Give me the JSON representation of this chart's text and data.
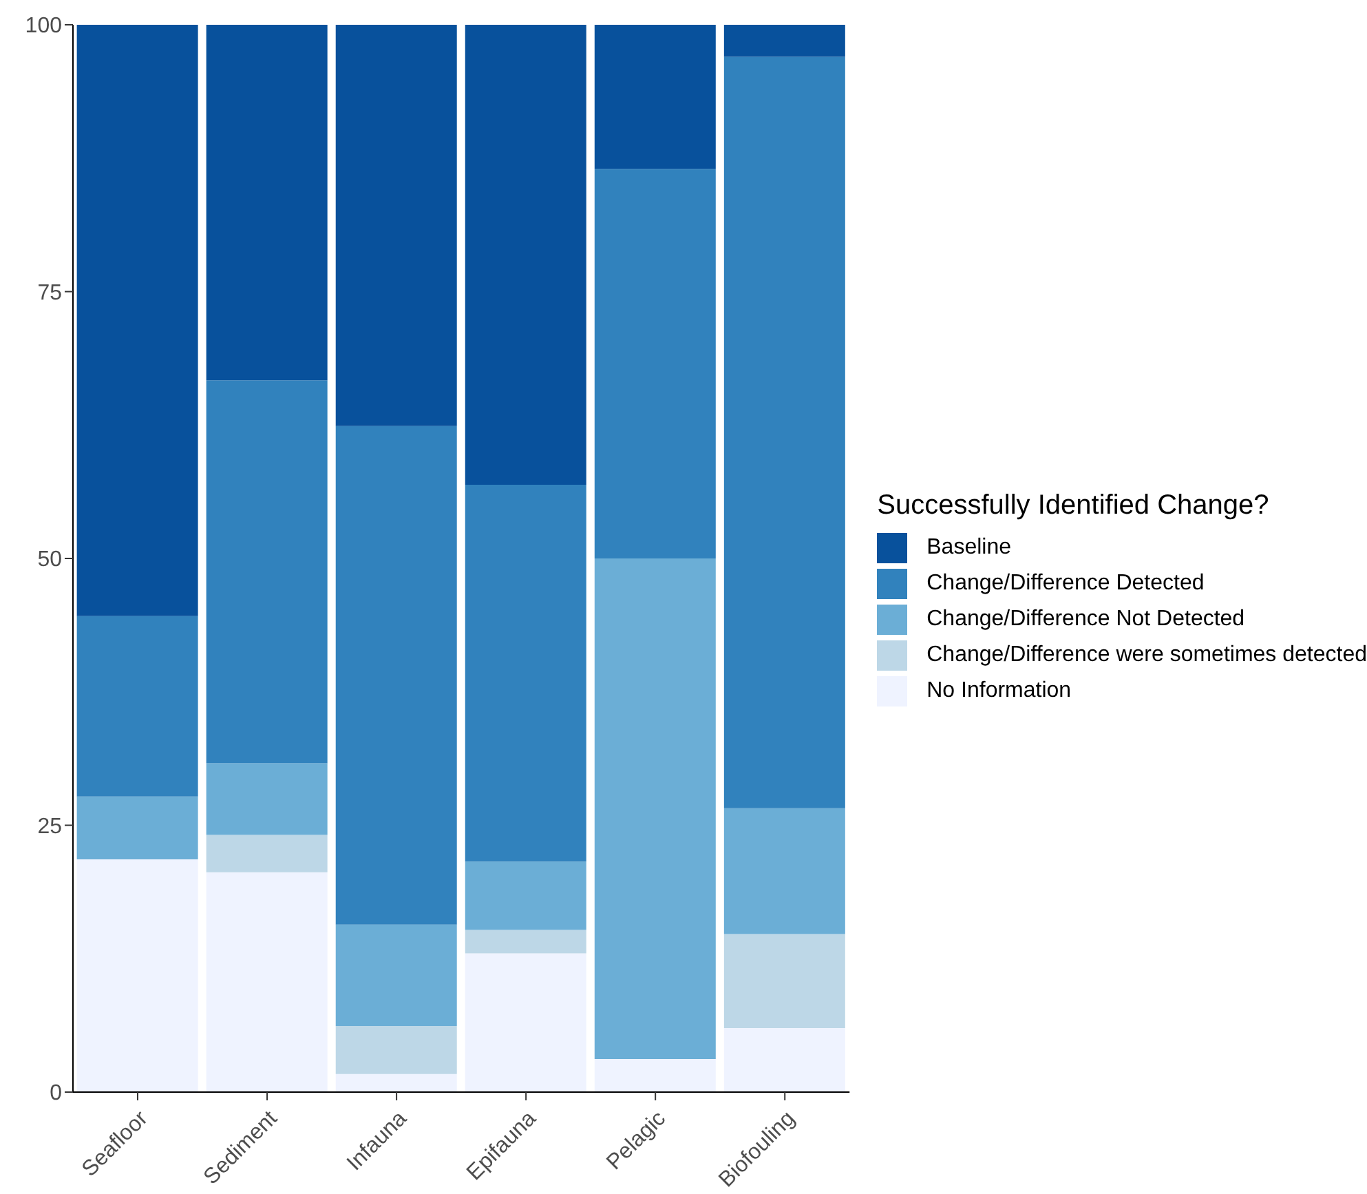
{
  "chart_data": {
    "type": "bar",
    "stacked": true,
    "legend_title": "Successfully Identified Change?",
    "categories": [
      "Seafloor",
      "Sediment",
      "Infauna",
      "Epifauna",
      "Pelagic",
      "Biofouling"
    ],
    "series": [
      {
        "name": "No Information",
        "color": "#eff3ff",
        "values": [
          21.8,
          20.6,
          1.7,
          13.0,
          3.1,
          6.0
        ]
      },
      {
        "name": "Change/Difference were sometimes detected",
        "color": "#bdd7e7",
        "values": [
          0,
          3.5,
          4.5,
          2.2,
          0,
          8.8
        ]
      },
      {
        "name": "Change/Difference Not Detected",
        "color": "#6baed6",
        "values": [
          5.9,
          6.7,
          9.5,
          6.4,
          46.9,
          11.8
        ]
      },
      {
        "name": "Change/Difference Detected",
        "color": "#3182bd",
        "values": [
          16.9,
          35.9,
          46.7,
          35.3,
          36.5,
          70.4
        ]
      },
      {
        "name": "Baseline",
        "color": "#08519c",
        "values": [
          55.4,
          33.3,
          37.6,
          43.1,
          13.5,
          3.0
        ]
      }
    ],
    "ylim": [
      0,
      100
    ],
    "yticks": [
      0,
      25,
      50,
      75,
      100
    ],
    "grid": false,
    "legend": "right"
  }
}
